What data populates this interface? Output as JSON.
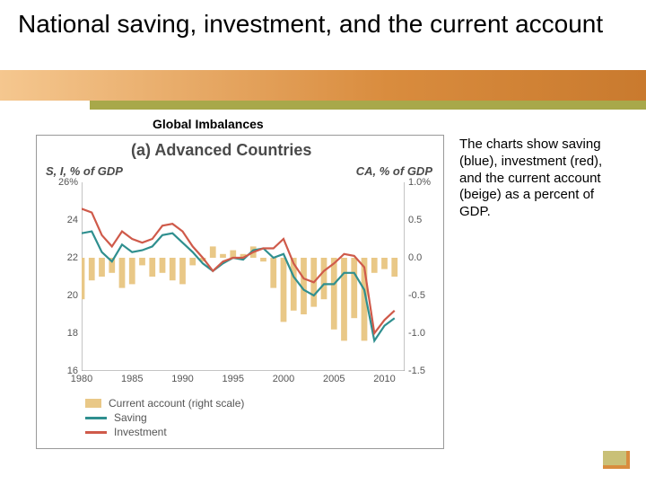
{
  "title": "National saving, investment, and the current account",
  "caption": "Global Imbalances",
  "chart": {
    "type": "line+bar-dual-axis",
    "panel_label": "(a) Advanced Countries",
    "left_axis_label": "S, I, % of GDP",
    "right_axis_label": "CA, % of GDP",
    "background_color": "#ffffff",
    "axis_color": "#888888",
    "tick_font_size": 11,
    "label_font_size": 13,
    "title_font_size": 18,
    "x": {
      "min": 1980,
      "max": 2012,
      "ticks": [
        1980,
        1985,
        1990,
        1995,
        2000,
        2005,
        2010
      ]
    },
    "y_left": {
      "min": 16,
      "max": 26,
      "ticks": [
        16,
        18,
        20,
        22,
        24
      ],
      "top_label": "26%"
    },
    "y_right": {
      "min": -1.5,
      "max": 1.0,
      "ticks": [
        -1.5,
        -1.0,
        -0.5,
        0.0,
        0.5,
        1.0
      ]
    },
    "line_width": 2.2,
    "series": {
      "current_account": {
        "label": "Current account (right scale)",
        "type": "bar",
        "color": "#e9c887",
        "axis": "right",
        "bar_width": 0.6,
        "data": [
          [
            1980,
            -0.55
          ],
          [
            1981,
            -0.3
          ],
          [
            1982,
            -0.25
          ],
          [
            1983,
            -0.2
          ],
          [
            1984,
            -0.4
          ],
          [
            1985,
            -0.35
          ],
          [
            1986,
            -0.1
          ],
          [
            1987,
            -0.25
          ],
          [
            1988,
            -0.2
          ],
          [
            1989,
            -0.3
          ],
          [
            1990,
            -0.35
          ],
          [
            1991,
            -0.1
          ],
          [
            1992,
            -0.05
          ],
          [
            1993,
            0.15
          ],
          [
            1994,
            0.05
          ],
          [
            1995,
            0.1
          ],
          [
            1996,
            0.05
          ],
          [
            1997,
            0.15
          ],
          [
            1998,
            -0.05
          ],
          [
            1999,
            -0.4
          ],
          [
            2000,
            -0.85
          ],
          [
            2001,
            -0.7
          ],
          [
            2002,
            -0.75
          ],
          [
            2003,
            -0.65
          ],
          [
            2004,
            -0.55
          ],
          [
            2005,
            -0.95
          ],
          [
            2006,
            -1.1
          ],
          [
            2007,
            -0.8
          ],
          [
            2008,
            -1.1
          ],
          [
            2009,
            -0.2
          ],
          [
            2010,
            -0.15
          ],
          [
            2011,
            -0.25
          ]
        ]
      },
      "saving": {
        "label": "Saving",
        "type": "line",
        "color": "#2f8f8f",
        "axis": "left",
        "data": [
          [
            1980,
            23.3
          ],
          [
            1981,
            23.4
          ],
          [
            1982,
            22.3
          ],
          [
            1983,
            21.8
          ],
          [
            1984,
            22.7
          ],
          [
            1985,
            22.3
          ],
          [
            1986,
            22.4
          ],
          [
            1987,
            22.6
          ],
          [
            1988,
            23.2
          ],
          [
            1989,
            23.3
          ],
          [
            1990,
            22.8
          ],
          [
            1991,
            22.3
          ],
          [
            1992,
            21.7
          ],
          [
            1993,
            21.3
          ],
          [
            1994,
            21.7
          ],
          [
            1995,
            22.0
          ],
          [
            1996,
            21.9
          ],
          [
            1997,
            22.4
          ],
          [
            1998,
            22.5
          ],
          [
            1999,
            22.0
          ],
          [
            2000,
            22.2
          ],
          [
            2001,
            21.0
          ],
          [
            2002,
            20.3
          ],
          [
            2003,
            20.0
          ],
          [
            2004,
            20.6
          ],
          [
            2005,
            20.6
          ],
          [
            2006,
            21.2
          ],
          [
            2007,
            21.2
          ],
          [
            2008,
            20.3
          ],
          [
            2009,
            17.6
          ],
          [
            2010,
            18.4
          ],
          [
            2011,
            18.8
          ]
        ]
      },
      "investment": {
        "label": "Investment",
        "type": "line",
        "color": "#cf5a4a",
        "axis": "left",
        "data": [
          [
            1980,
            24.6
          ],
          [
            1981,
            24.4
          ],
          [
            1982,
            23.2
          ],
          [
            1983,
            22.6
          ],
          [
            1984,
            23.4
          ],
          [
            1985,
            23.0
          ],
          [
            1986,
            22.8
          ],
          [
            1987,
            23.0
          ],
          [
            1988,
            23.7
          ],
          [
            1989,
            23.8
          ],
          [
            1990,
            23.4
          ],
          [
            1991,
            22.6
          ],
          [
            1992,
            22.0
          ],
          [
            1993,
            21.3
          ],
          [
            1994,
            21.8
          ],
          [
            1995,
            22.0
          ],
          [
            1996,
            22.0
          ],
          [
            1997,
            22.3
          ],
          [
            1998,
            22.5
          ],
          [
            1999,
            22.5
          ],
          [
            2000,
            23.0
          ],
          [
            2001,
            21.7
          ],
          [
            2002,
            20.9
          ],
          [
            2003,
            20.7
          ],
          [
            2004,
            21.3
          ],
          [
            2005,
            21.7
          ],
          [
            2006,
            22.2
          ],
          [
            2007,
            22.1
          ],
          [
            2008,
            21.5
          ],
          [
            2009,
            18.0
          ],
          [
            2010,
            18.7
          ],
          [
            2011,
            19.2
          ]
        ]
      }
    }
  },
  "description": "The charts show saving (blue), investment (red), and the current account (beige) as a percent of GDP.",
  "colors": {
    "band_orange_from": "#f5c78f",
    "band_orange_to": "#c97a2e",
    "band_olive": "#a8a84a"
  }
}
